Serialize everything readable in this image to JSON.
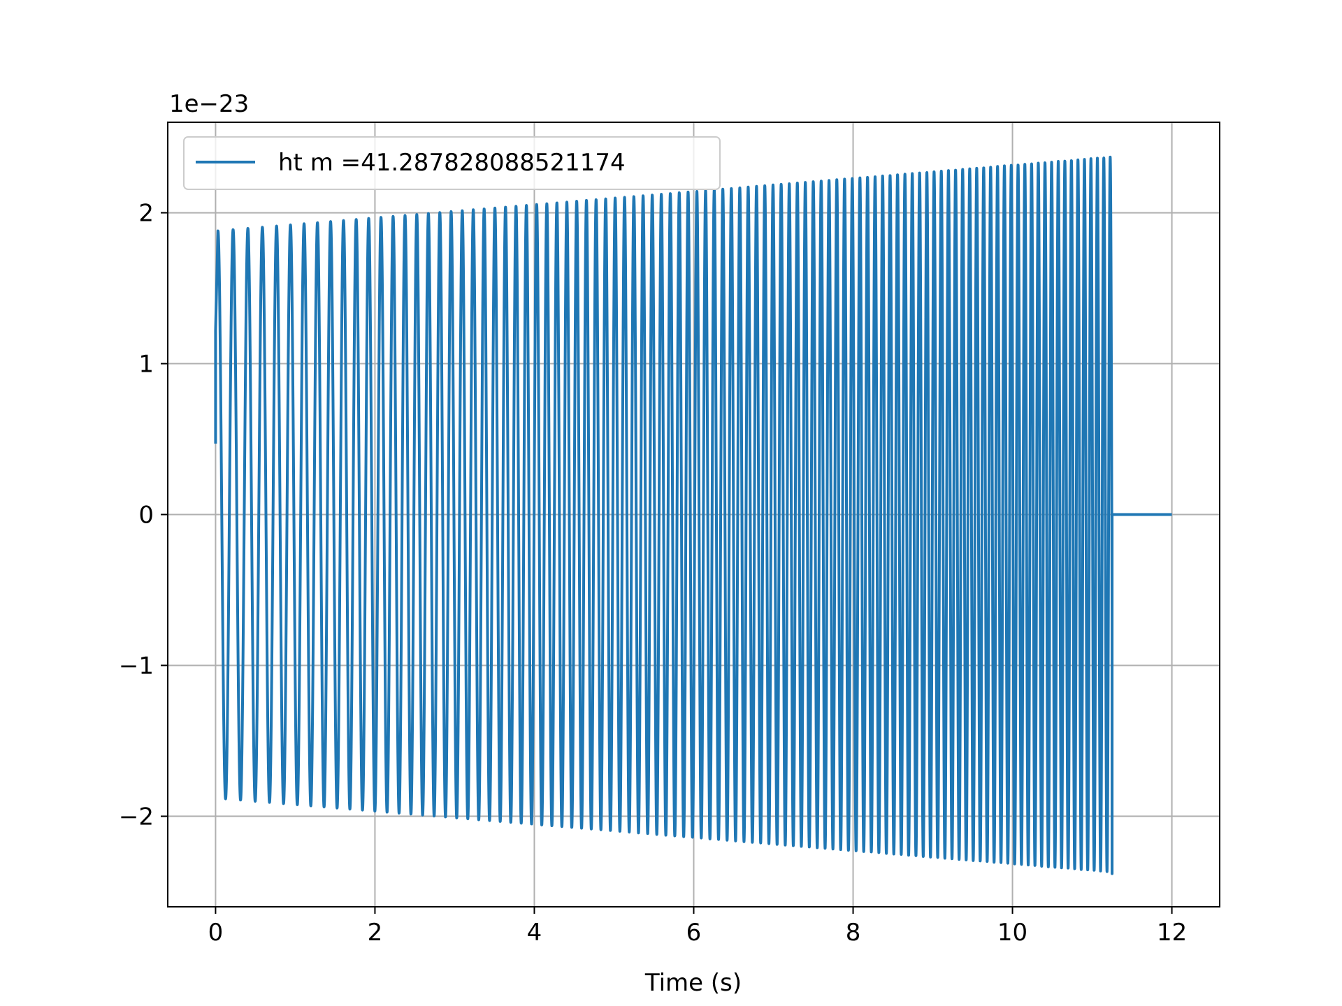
{
  "chart_data": {
    "type": "line",
    "title": "",
    "xlabel": "Time (s)",
    "ylabel": "",
    "y_scale_label": "1e−23",
    "xlim": [
      -0.6,
      12.6
    ],
    "ylim": [
      -2.6,
      2.6
    ],
    "x_ticks": [
      0,
      2,
      4,
      6,
      8,
      10,
      12
    ],
    "x_tick_labels": [
      "0",
      "2",
      "4",
      "6",
      "8",
      "10",
      "12"
    ],
    "y_ticks": [
      -2,
      -1,
      0,
      1,
      2
    ],
    "y_tick_labels": [
      "−2",
      "−1",
      "0",
      "1",
      "2"
    ],
    "grid": true,
    "legend_position": "upper-left",
    "series": [
      {
        "name": "ht m =41.287828088521174",
        "color": "#1f77b4",
        "signal": {
          "start_time": 0.0,
          "start_value": 0.47,
          "first_peak_time": 0.03,
          "first_peak_value": 1.88,
          "first_trough_time": 0.14,
          "first_trough_value": -1.88,
          "last_peak_time": 11.2,
          "last_peak_value": 2.37,
          "last_trough_time": 11.25,
          "last_trough_value": -2.38,
          "oscillation_end_time": 11.25,
          "tail_value": 0,
          "end_time": 12.0,
          "peaks_approx": [
            [
              0.03,
              1.88
            ],
            [
              0.2,
              1.89
            ],
            [
              0.4,
              1.89
            ],
            [
              0.6,
              1.9
            ],
            [
              1.2,
              1.91
            ],
            [
              2.0,
              1.93
            ],
            [
              3.0,
              1.96
            ],
            [
              4.0,
              2.0
            ],
            [
              5.0,
              2.04
            ],
            [
              6.0,
              2.09
            ],
            [
              7.0,
              2.14
            ],
            [
              8.0,
              2.2
            ],
            [
              9.0,
              2.26
            ],
            [
              10.0,
              2.31
            ],
            [
              11.0,
              2.36
            ],
            [
              11.2,
              2.37
            ]
          ],
          "troughs_approx": [
            [
              0.14,
              -1.88
            ],
            [
              0.3,
              -1.89
            ],
            [
              0.5,
              -1.89
            ],
            [
              1.0,
              -1.9
            ],
            [
              2.0,
              -1.93
            ],
            [
              3.0,
              -1.96
            ],
            [
              4.0,
              -2.0
            ],
            [
              5.0,
              -2.04
            ],
            [
              6.0,
              -2.09
            ],
            [
              7.0,
              -2.15
            ],
            [
              8.0,
              -2.2
            ],
            [
              9.0,
              -2.26
            ],
            [
              10.0,
              -2.31
            ],
            [
              11.0,
              -2.36
            ],
            [
              11.25,
              -2.38
            ]
          ],
          "frequency_start_hz": 5.2,
          "frequency_end_hz": 12.5
        }
      }
    ]
  }
}
